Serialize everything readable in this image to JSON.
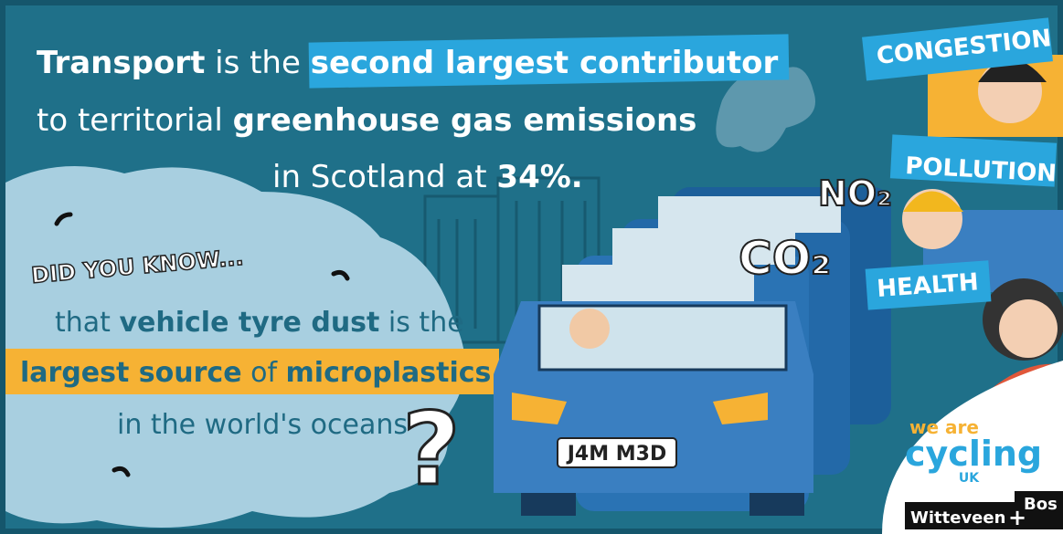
{
  "headline": {
    "lines": [
      [
        {
          "text": "Transport",
          "style": "bold"
        },
        {
          "text": " is the ",
          "style": "plain"
        },
        {
          "text": "second largest contributor",
          "style": "bold"
        }
      ],
      [
        {
          "text": "to territorial ",
          "style": "plain"
        },
        {
          "text": "greenhouse gas emissions",
          "style": "bold"
        }
      ],
      [
        {
          "text": "in Scotland at ",
          "style": "plain"
        },
        {
          "text": "34%.",
          "style": "bold"
        }
      ]
    ]
  },
  "did_you_know": {
    "title": "DID YOU KNOW...",
    "lines": [
      [
        {
          "text": "that ",
          "style": "plain"
        },
        {
          "text": "vehicle tyre dust",
          "style": "bold"
        },
        {
          "text": " is the",
          "style": "plain"
        }
      ],
      [
        {
          "text": "largest source",
          "style": "bold"
        },
        {
          "text": " of ",
          "style": "plain"
        },
        {
          "text": "microplastics",
          "style": "bold"
        }
      ],
      [
        {
          "text": "in the world's oceans",
          "style": "plain"
        }
      ]
    ],
    "mark": "?"
  },
  "banners": [
    "CONGESTION",
    "POLLUTION",
    "HEALTH"
  ],
  "gases": [
    "NO₂",
    "CO₂"
  ],
  "number_plate": "J4M M3D",
  "logo": {
    "line1": "we are",
    "line2": "cycling",
    "line3": "UK"
  },
  "partner": {
    "left": "Witteveen",
    "plus": "+",
    "right": "Bos"
  }
}
